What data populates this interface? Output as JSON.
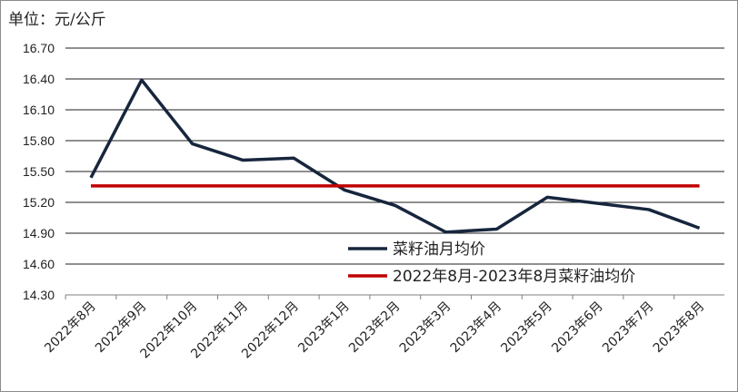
{
  "unit_label": "单位：元/公斤",
  "chart_data": {
    "type": "line",
    "categories": [
      "2022年8月",
      "2022年9月",
      "2022年10月",
      "2022年11月",
      "2022年12月",
      "2023年1月",
      "2023年2月",
      "2023年3月",
      "2023年4月",
      "2023年5月",
      "2023年6月",
      "2023年7月",
      "2023年8月"
    ],
    "y_ticks": [
      "16.70",
      "16.40",
      "16.10",
      "15.80",
      "15.50",
      "15.20",
      "14.90",
      "14.60",
      "14.30"
    ],
    "ylim": [
      14.3,
      16.7
    ],
    "grid": true,
    "legend_position": "bottom-right-inside",
    "series": [
      {
        "name": "菜籽油月均价",
        "color": "#17263d",
        "values": [
          15.44,
          16.39,
          15.77,
          15.61,
          15.63,
          15.32,
          15.17,
          14.91,
          14.94,
          15.25,
          15.19,
          15.13,
          14.95
        ]
      },
      {
        "name": "2022年8月-2023年8月菜籽油均价",
        "color": "#c00000",
        "values": [
          15.36,
          15.36,
          15.36,
          15.36,
          15.36,
          15.36,
          15.36,
          15.36,
          15.36,
          15.36,
          15.36,
          15.36,
          15.36
        ]
      }
    ]
  }
}
